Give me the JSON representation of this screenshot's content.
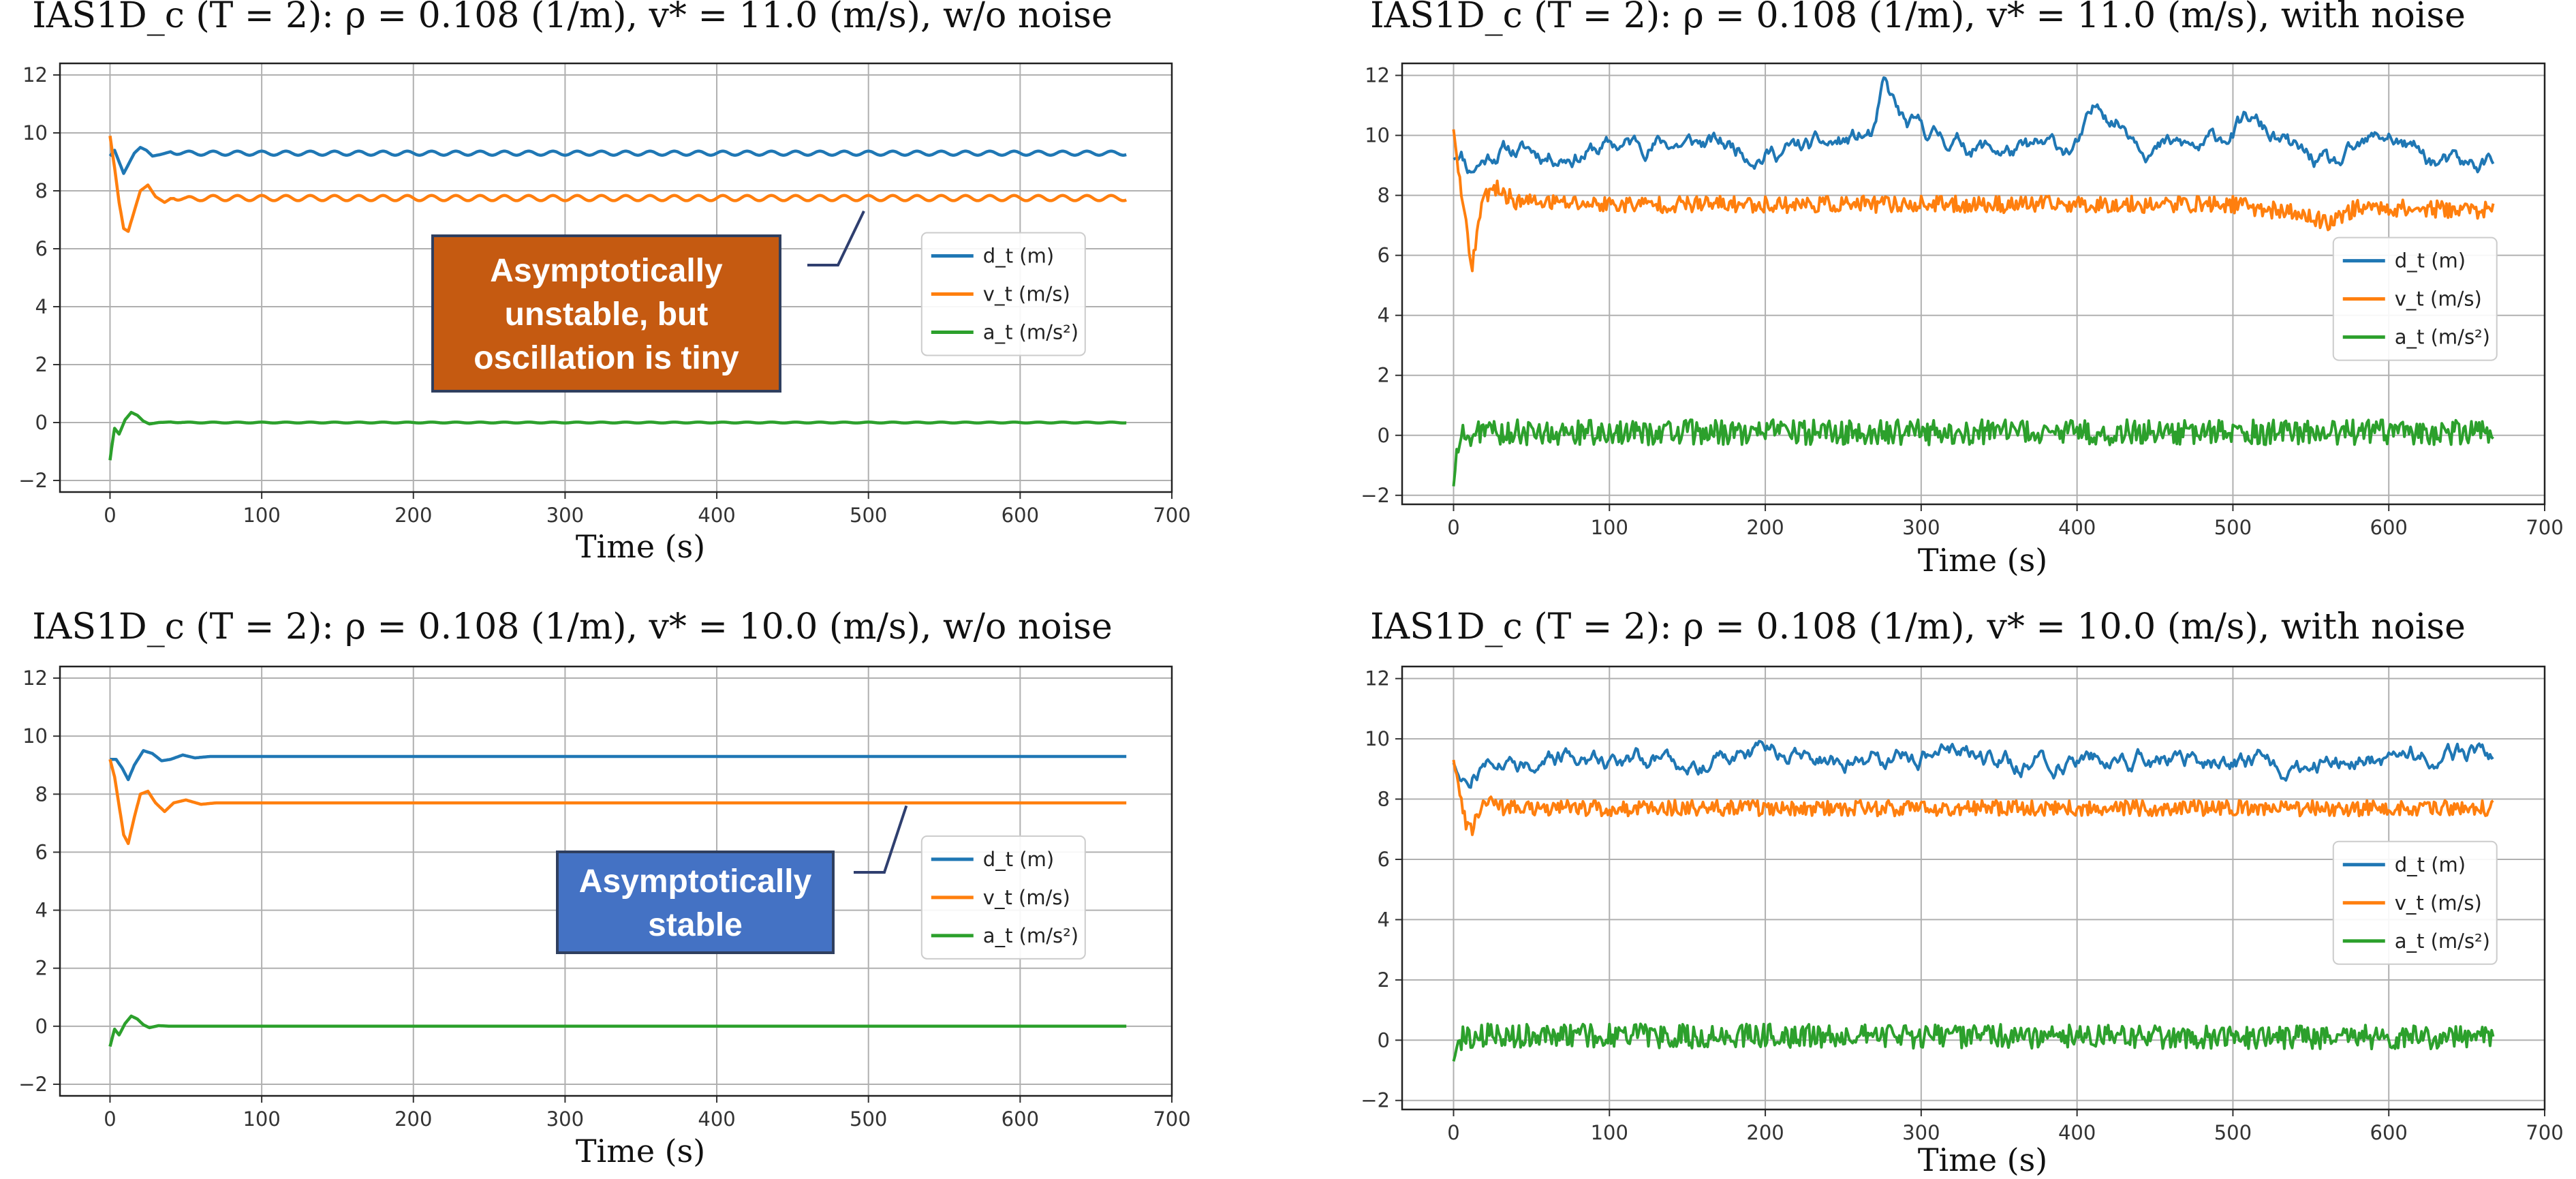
{
  "colors": {
    "d": "#1f77b4",
    "v": "#ff7f0e",
    "a": "#2ca02c",
    "annot_unstable": "#c55a11",
    "annot_stable": "#4472c4",
    "annot_border": "#2f3f5f"
  },
  "chart_data": [
    {
      "type": "line",
      "title": "IAS1D_c (T = 2): ρ = 0.108 (1/m), v* = 11.0 (m/s), w/o noise",
      "xlabel": "Time (s)",
      "xlim": [
        -33,
        700
      ],
      "ylim": [
        -2.4,
        12.4
      ],
      "xticks": [
        0,
        100,
        200,
        300,
        400,
        500,
        600,
        700
      ],
      "yticks": [
        -2,
        0,
        2,
        4,
        6,
        8,
        10,
        12
      ],
      "ytick_labels": [
        "−2",
        "0",
        "2",
        "4",
        "6",
        "8",
        "10",
        "12"
      ],
      "grid": true,
      "legend_position": "right",
      "legend": [
        "d_t (m)",
        "v_t (m/s)",
        "a_t (m/s²)"
      ],
      "series": [
        {
          "name": "d_t (m)",
          "x": [
            0,
            3,
            6,
            9,
            12,
            16,
            20,
            24,
            28,
            33,
            40,
            50,
            60,
            670
          ],
          "y": [
            9.2,
            9.4,
            9.0,
            8.6,
            8.9,
            9.3,
            9.5,
            9.4,
            9.2,
            9.25,
            9.35,
            9.3,
            9.3,
            9.3
          ]
        },
        {
          "name": "v_t (m/s)",
          "x": [
            0,
            3,
            6,
            9,
            12,
            16,
            20,
            25,
            30,
            36,
            42,
            50,
            60,
            670
          ],
          "y": [
            9.9,
            8.8,
            7.6,
            6.7,
            6.6,
            7.3,
            8.0,
            8.2,
            7.8,
            7.6,
            7.8,
            7.7,
            7.75,
            7.75
          ]
        },
        {
          "name": "a_t (m/s²)",
          "x": [
            0,
            1,
            3,
            6,
            10,
            14,
            18,
            22,
            26,
            32,
            40,
            50,
            670
          ],
          "y": [
            -1.3,
            -0.9,
            -0.2,
            -0.4,
            0.1,
            0.35,
            0.25,
            0.05,
            -0.05,
            0.0,
            0.02,
            0.0,
            0.0
          ]
        }
      ],
      "osc": {
        "d_amp": 0.07,
        "v_amp": 0.09,
        "a_amp": 0.015,
        "period": 16
      },
      "annotation": {
        "lines": [
          "Asymptotically",
          "unstable, but",
          "oscillation is tiny"
        ],
        "style": "unstable",
        "arrow_target_x": 497,
        "arrow_target_y": 7.3
      }
    },
    {
      "type": "line",
      "title": "IAS1D_c (T = 2): ρ = 0.108 (1/m), v* = 11.0 (m/s), with noise",
      "xlabel": "Time (s)",
      "xlim": [
        -33,
        700
      ],
      "ylim": [
        -2.3,
        12.4
      ],
      "xticks": [
        0,
        100,
        200,
        300,
        400,
        500,
        600,
        700
      ],
      "yticks": [
        -2,
        0,
        2,
        4,
        6,
        8,
        10,
        12
      ],
      "ytick_labels": [
        "−2",
        "0",
        "2",
        "4",
        "6",
        "8",
        "10",
        "12"
      ],
      "grid": true,
      "legend_position": "right",
      "legend": [
        "d_t (m)",
        "v_t (m/s)",
        "a_t (m/s²)"
      ],
      "series": [
        {
          "name": "d_t (m)",
          "x": [
            0,
            5,
            10,
            30,
            60,
            100,
            130,
            165,
            200,
            240,
            270,
            276,
            290,
            330,
            365,
            400,
            415,
            450,
            480,
            510,
            540,
            565,
            600,
            625,
            650,
            667
          ],
          "y": [
            9.2,
            9.5,
            9.0,
            9.6,
            9.4,
            9.6,
            9.8,
            9.7,
            9.5,
            9.6,
            10.0,
            11.5,
            10.2,
            9.7,
            9.4,
            9.6,
            11.0,
            9.7,
            9.5,
            10.5,
            9.4,
            8.8,
            10.0,
            9.2,
            8.8,
            9.2
          ]
        },
        {
          "name": "v_t (m/s)",
          "x": [
            0,
            3,
            6,
            9,
            12,
            15,
            20,
            28,
            40,
            100,
            300,
            500,
            540,
            560,
            580,
            667
          ],
          "y": [
            10.2,
            8.8,
            7.8,
            6.5,
            5.5,
            6.8,
            8.0,
            8.2,
            7.8,
            7.7,
            7.7,
            7.7,
            7.4,
            7.1,
            7.6,
            7.5
          ]
        },
        {
          "name": "a_t (m/s²)",
          "x": [
            0,
            2,
            6,
            20,
            667
          ],
          "y": [
            -1.7,
            -0.6,
            0.0,
            0.1,
            0.1
          ]
        }
      ],
      "noise": {
        "d": 0.45,
        "v": 0.28,
        "a": 0.42,
        "seed": 11
      }
    },
    {
      "type": "line",
      "title": "IAS1D_c (T = 2): ρ = 0.108 (1/m), v* = 10.0 (m/s), w/o noise",
      "xlabel": "Time (s)",
      "xlim": [
        -33,
        700
      ],
      "ylim": [
        -2.4,
        12.4
      ],
      "xticks": [
        0,
        100,
        200,
        300,
        400,
        500,
        600,
        700
      ],
      "yticks": [
        -2,
        0,
        2,
        4,
        6,
        8,
        10,
        12
      ],
      "ytick_labels": [
        "−2",
        "0",
        "2",
        "4",
        "6",
        "8",
        "10",
        "12"
      ],
      "grid": true,
      "legend_position": "right",
      "legend": [
        "d_t (m)",
        "v_t (m/s)",
        "a_t (m/s²)"
      ],
      "series": [
        {
          "name": "d_t (m)",
          "x": [
            0,
            4,
            8,
            12,
            16,
            22,
            28,
            34,
            40,
            48,
            56,
            66,
            80,
            670
          ],
          "y": [
            9.2,
            9.2,
            8.9,
            8.5,
            9.0,
            9.5,
            9.4,
            9.15,
            9.2,
            9.35,
            9.25,
            9.3,
            9.3,
            9.3
          ]
        },
        {
          "name": "v_t (m/s)",
          "x": [
            0,
            3,
            6,
            9,
            12,
            16,
            20,
            25,
            30,
            36,
            42,
            50,
            60,
            70,
            670
          ],
          "y": [
            9.2,
            8.6,
            7.6,
            6.6,
            6.3,
            7.2,
            8.0,
            8.1,
            7.7,
            7.4,
            7.7,
            7.8,
            7.65,
            7.7,
            7.7
          ]
        },
        {
          "name": "a_t (m/s²)",
          "x": [
            0,
            1,
            3,
            6,
            10,
            14,
            18,
            22,
            26,
            32,
            40,
            50,
            670
          ],
          "y": [
            -0.7,
            -0.5,
            -0.1,
            -0.3,
            0.1,
            0.35,
            0.25,
            0.05,
            -0.05,
            0.02,
            0.0,
            0.0,
            0.0
          ]
        }
      ],
      "annotation": {
        "lines": [
          "Asymptotically",
          "stable"
        ],
        "style": "stable",
        "arrow_target_x": 525,
        "arrow_target_y": 7.6
      }
    },
    {
      "type": "line",
      "title": "IAS1D_c (T = 2): ρ = 0.108 (1/m), v* = 10.0 (m/s), with noise",
      "xlabel": "Time (s)",
      "xlim": [
        -33,
        700
      ],
      "ylim": [
        -2.3,
        12.4
      ],
      "xticks": [
        0,
        100,
        200,
        300,
        400,
        500,
        600,
        700
      ],
      "yticks": [
        -2,
        0,
        2,
        4,
        6,
        8,
        10,
        12
      ],
      "ytick_labels": [
        "−2",
        "0",
        "2",
        "4",
        "6",
        "8",
        "10",
        "12"
      ],
      "grid": true,
      "legend_position": "right",
      "legend": [
        "d_t (m)",
        "v_t (m/s)",
        "a_t (m/s²)"
      ],
      "series": [
        {
          "name": "d_t (m)",
          "x": [
            0,
            6,
            12,
            25,
            50,
            100,
            150,
            200,
            240,
            280,
            330,
            360,
            400,
            450,
            500,
            550,
            600,
            640,
            667
          ],
          "y": [
            9.2,
            8.4,
            8.8,
            9.5,
            9.3,
            9.4,
            9.3,
            9.6,
            9.2,
            9.3,
            9.5,
            9.2,
            9.4,
            9.3,
            9.3,
            9.1,
            9.3,
            9.6,
            9.3
          ]
        },
        {
          "name": "v_t (m/s)",
          "x": [
            0,
            4,
            8,
            12,
            16,
            22,
            30,
            60,
            667
          ],
          "y": [
            9.3,
            8.2,
            7.2,
            6.9,
            7.6,
            8.0,
            7.7,
            7.7,
            7.7
          ]
        },
        {
          "name": "a_t (m/s²)",
          "x": [
            0,
            2,
            6,
            20,
            667
          ],
          "y": [
            -0.7,
            -0.3,
            0.1,
            0.15,
            0.1
          ]
        }
      ],
      "noise": {
        "d": 0.45,
        "v": 0.26,
        "a": 0.4,
        "seed": 27
      }
    }
  ]
}
